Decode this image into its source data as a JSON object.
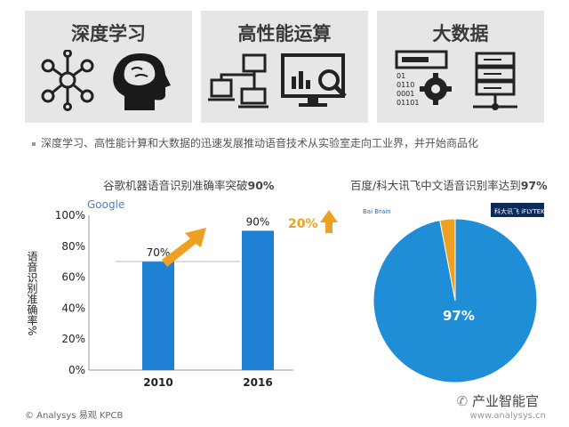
{
  "panels": [
    {
      "title": "深度学习",
      "icons": [
        "network-node-icon",
        "brain-head-icon"
      ]
    },
    {
      "title": "高性能运算",
      "icons": [
        "connected-computers-icon",
        "analytics-monitor-icon"
      ]
    },
    {
      "title": "大数据",
      "icons": [
        "binary-gear-icon",
        "server-stack-icon"
      ]
    }
  ],
  "bullet_text": "深度学习、高性能计算和大数据的迅速发展推动语音技术从实验室走向工业界，并开始商品化",
  "chart_data": [
    {
      "type": "bar",
      "title": "谷歌机器语音识别准确率突破90%",
      "title_prefix": "谷歌机器语音识别准确率突破",
      "title_highlight": "90%",
      "categories": [
        "2010",
        "2016"
      ],
      "values": [
        70,
        90
      ],
      "data_labels": [
        "70%",
        "90%"
      ],
      "ylabel": "语音识别准确率%",
      "yticks": [
        "0%",
        "20%",
        "40%",
        "60%",
        "80%",
        "100%"
      ],
      "ylim": [
        0,
        100
      ],
      "annotation": "20%",
      "logo": "Google",
      "colors": {
        "bar": "#1f7fd3",
        "arrow": "#f0a020",
        "annotation": "#f0a020"
      }
    },
    {
      "type": "pie",
      "title": "百度/科大讯飞中文语音识别率达到97%",
      "title_prefix": "百度/科大讯飞中文语音识别率达到",
      "title_highlight": "97%",
      "values": [
        97,
        3
      ],
      "data_labels": [
        "97%"
      ],
      "logos": [
        "Bai Brain",
        "科大讯飞 iFLYTEK"
      ],
      "colors": {
        "main": "#1f8ed6",
        "rest": "#f0a020"
      }
    }
  ],
  "footer": {
    "source": "© Analysys 易观  KPCB",
    "wechat": "产业智能官",
    "site": "www.analysys.cn"
  }
}
